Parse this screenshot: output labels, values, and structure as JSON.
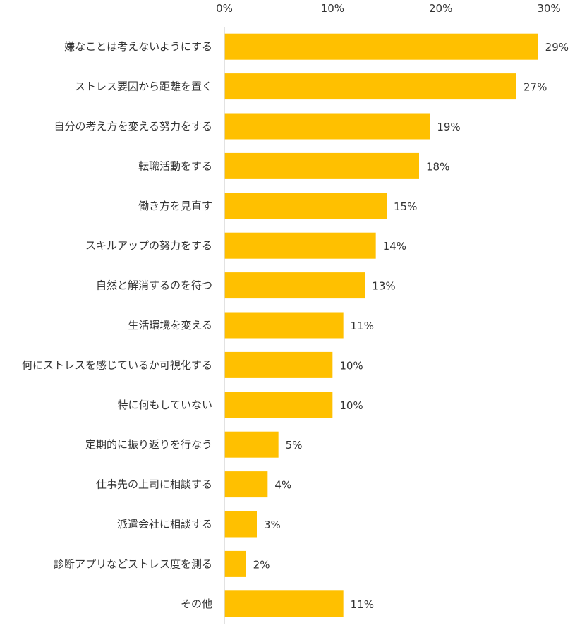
{
  "chart_data": {
    "type": "bar",
    "orientation": "horizontal",
    "categories": [
      "嫌なことは考えないようにする",
      "ストレス要因から距離を置く",
      "自分の考え方を変える努力をする",
      "転職活動をする",
      "働き方を見直す",
      "スキルアップの努力をする",
      "自然と解消するのを待つ",
      "生活環境を変える",
      "何にストレスを感じているか可視化する",
      "特に何もしていない",
      "定期的に振り返りを行なう",
      "仕事先の上司に相談する",
      "派遣会社に相談する",
      "診断アプリなどストレス度を測る",
      "その他"
    ],
    "values": [
      29,
      27,
      19,
      18,
      15,
      14,
      13,
      11,
      10,
      10,
      5,
      4,
      3,
      2,
      11
    ],
    "value_labels": [
      "29%",
      "27%",
      "19%",
      "18%",
      "15%",
      "14%",
      "13%",
      "11%",
      "10%",
      "10%",
      "5%",
      "4%",
      "3%",
      "2%",
      "11%"
    ],
    "xlim": [
      0,
      30
    ],
    "xticks": [
      0,
      10,
      20,
      30
    ],
    "xtick_labels": [
      "0%",
      "10%",
      "20%",
      "30%"
    ],
    "x_axis_position": "top",
    "grid": false,
    "bar_color": "#FFC000",
    "axis_color": "#D9D9D9",
    "text_color": "#333333"
  }
}
